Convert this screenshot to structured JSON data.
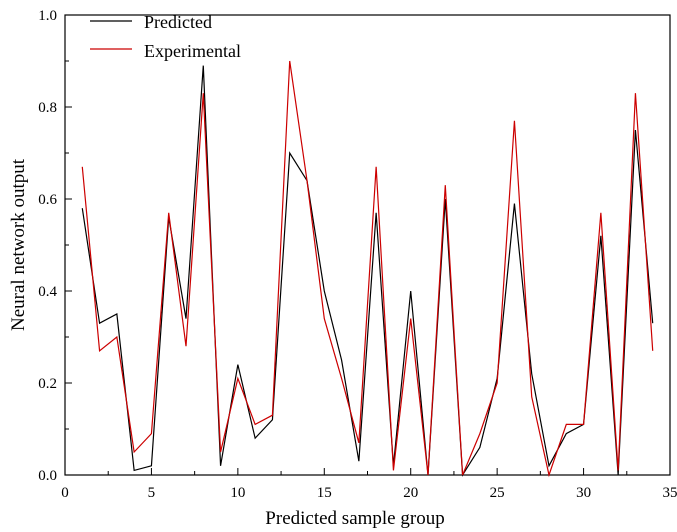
{
  "chart_data": {
    "type": "line",
    "title": "",
    "xlabel": "Predicted sample group",
    "ylabel": "Neural network output",
    "xlim": [
      0,
      35
    ],
    "ylim": [
      0.0,
      1.0
    ],
    "x_ticks": [
      "0",
      "5",
      "10",
      "15",
      "20",
      "25",
      "30",
      "35"
    ],
    "y_ticks": [
      "0.0",
      "0.2",
      "0.4",
      "0.6",
      "0.8",
      "1.0"
    ],
    "grid": false,
    "legend_position": "top-left",
    "x": [
      1,
      2,
      3,
      4,
      5,
      6,
      7,
      8,
      9,
      10,
      11,
      12,
      13,
      14,
      15,
      16,
      17,
      18,
      19,
      20,
      21,
      22,
      23,
      24,
      25,
      26,
      27,
      28,
      29,
      30,
      31,
      32,
      33,
      34
    ],
    "series": [
      {
        "name": "Predicted",
        "color": "#000000",
        "values": [
          0.58,
          0.33,
          0.35,
          0.01,
          0.02,
          0.56,
          0.34,
          0.89,
          0.02,
          0.24,
          0.08,
          0.12,
          0.7,
          0.64,
          0.4,
          0.25,
          0.03,
          0.57,
          0.02,
          0.4,
          0.0,
          0.6,
          0.0,
          0.06,
          0.21,
          0.59,
          0.22,
          0.02,
          0.09,
          0.11,
          0.52,
          0.0,
          0.75,
          0.33
        ]
      },
      {
        "name": "Experimental",
        "color": "#cc0000",
        "values": [
          0.67,
          0.27,
          0.3,
          0.05,
          0.09,
          0.57,
          0.28,
          0.83,
          0.05,
          0.21,
          0.11,
          0.13,
          0.9,
          0.64,
          0.34,
          0.21,
          0.07,
          0.67,
          0.01,
          0.34,
          0.0,
          0.63,
          0.0,
          0.09,
          0.2,
          0.77,
          0.17,
          0.0,
          0.11,
          0.11,
          0.57,
          0.01,
          0.83,
          0.27
        ]
      }
    ]
  }
}
